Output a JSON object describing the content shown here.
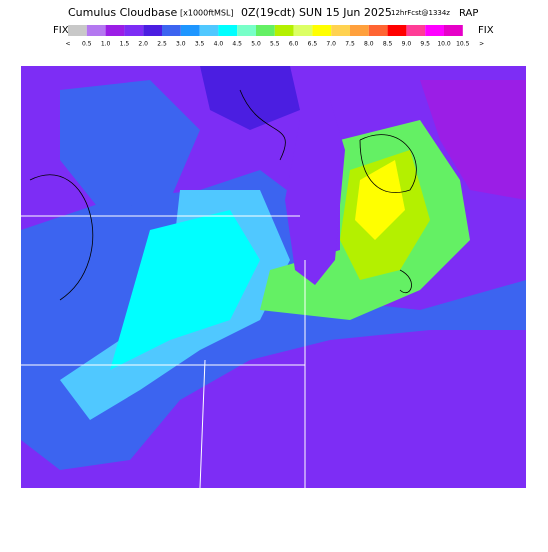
{
  "header": {
    "title": "Cumulus Cloudbase",
    "units": "[x1000ftMSL]",
    "time": "0Z(19cdt) SUN 15 Jun 2025",
    "forecast": "12hrFcst@1334z",
    "model": "RAP"
  },
  "legend": {
    "left": "FIX",
    "right": "FIX",
    "labels": [
      "<",
      "0.5",
      "1.0",
      "1.5",
      "2.0",
      "2.5",
      "3.0",
      "3.5",
      "4.0",
      "4.5",
      "5.0",
      "5.5",
      "6.0",
      "6.5",
      "7.0",
      "7.5",
      "8.0",
      "8.5",
      "9.0",
      "9.5",
      "10.0",
      "10.5",
      ">"
    ],
    "colors": [
      "#c8c8c8",
      "#b478f0",
      "#9b1ee6",
      "#7d2df5",
      "#4b1ee1",
      "#3c64f0",
      "#1e96ff",
      "#50c8ff",
      "#00ffff",
      "#78ffc8",
      "#64f064",
      "#b4f000",
      "#dcff64",
      "#ffff00",
      "#ffd250",
      "#ffa03c",
      "#ff6432",
      "#ff0000",
      "#ff3c96",
      "#ff00ff",
      "#e600c8"
    ]
  }
}
